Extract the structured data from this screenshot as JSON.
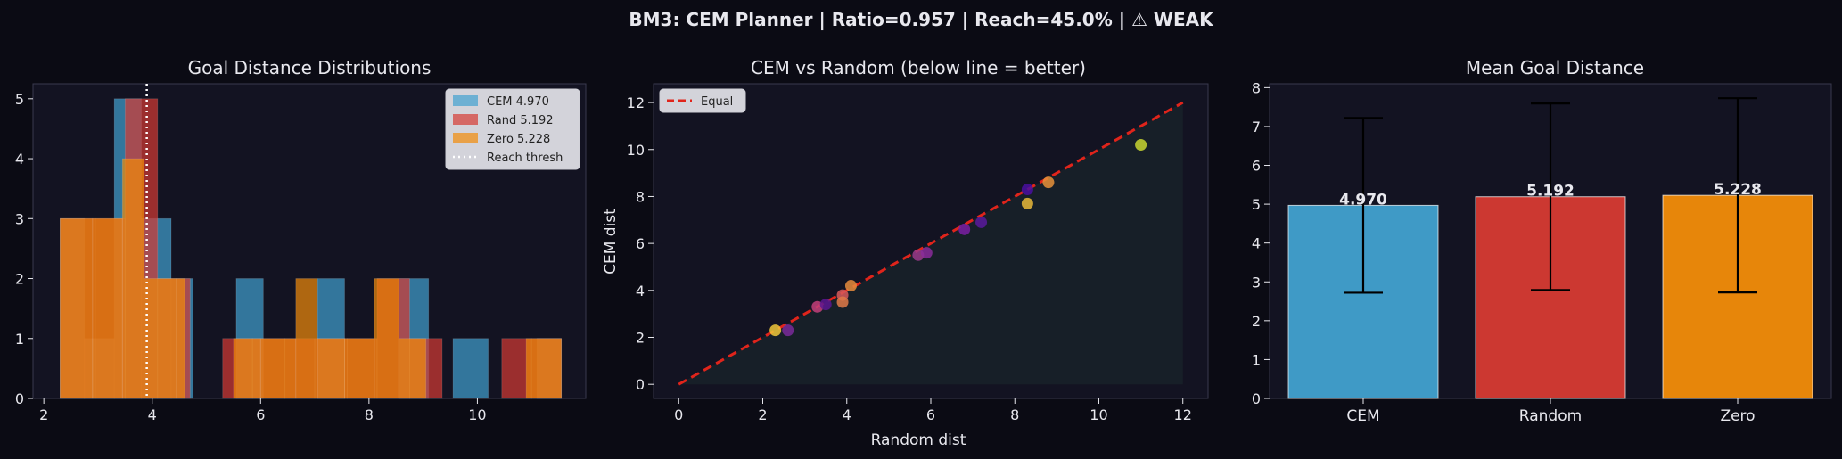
{
  "suptitle": "BM3: CEM Planner | Ratio=0.957 | Reach=45.0% | ⚠ WEAK",
  "colors": {
    "figure_bg": "#0b0b14",
    "axes_bg": "#131322",
    "spine": "#3a3a4e",
    "text": "#e8e8ee",
    "cem": "#41a1d0",
    "random": "#d63a33",
    "zero": "#f28c0a"
  },
  "chart_data": [
    {
      "type": "histogram",
      "title": "Goal Distance Distributions",
      "xlabel": "",
      "ylabel": "",
      "xlim": [
        1.8,
        12.0
      ],
      "ylim": [
        0,
        5.25
      ],
      "xticks": [
        "2",
        "4",
        "6",
        "8",
        "10"
      ],
      "yticks": [
        "0",
        "1",
        "2",
        "3",
        "4",
        "5"
      ],
      "grid": false,
      "legend_position": "top-right",
      "series": [
        {
          "name": "CEM 4.970",
          "color": "#41a1d0",
          "bars": [
            [
              2.3,
              2.75,
              3
            ],
            [
              2.75,
              3.3,
              1
            ],
            [
              3.3,
              3.8,
              5
            ],
            [
              3.8,
              4.35,
              3
            ],
            [
              4.35,
              4.75,
              2
            ],
            [
              5.55,
              6.05,
              2
            ],
            [
              7.05,
              7.55,
              2
            ],
            [
              8.55,
              9.1,
              2
            ],
            [
              9.55,
              10.2,
              1
            ],
            [
              11.1,
              11.55,
              1
            ]
          ]
        },
        {
          "name": "Rand 5.192",
          "color": "#d63a33",
          "bars": [
            [
              2.3,
              2.95,
              3
            ],
            [
              2.95,
              3.5,
              3
            ],
            [
              3.5,
              4.1,
              5
            ],
            [
              4.1,
              4.7,
              2
            ],
            [
              5.3,
              5.85,
              1
            ],
            [
              5.85,
              6.45,
              1
            ],
            [
              6.45,
              7.0,
              1
            ],
            [
              7.0,
              7.6,
              1
            ],
            [
              7.6,
              8.15,
              1
            ],
            [
              8.15,
              8.75,
              2
            ],
            [
              8.75,
              9.35,
              1
            ],
            [
              10.45,
              11.0,
              1
            ],
            [
              11.0,
              11.55,
              1
            ]
          ]
        },
        {
          "name": "Zero 5.228",
          "color": "#f28c0a",
          "bars": [
            [
              2.3,
              2.9,
              3
            ],
            [
              2.9,
              3.45,
              3
            ],
            [
              3.45,
              3.85,
              4
            ],
            [
              3.85,
              4.45,
              2
            ],
            [
              4.45,
              4.6,
              2
            ],
            [
              5.5,
              6.0,
              1
            ],
            [
              6.0,
              6.65,
              1
            ],
            [
              6.65,
              7.05,
              2
            ],
            [
              7.05,
              7.55,
              1
            ],
            [
              7.55,
              8.1,
              1
            ],
            [
              8.1,
              8.55,
              2
            ],
            [
              8.55,
              9.05,
              1
            ],
            [
              10.9,
              11.55,
              1
            ]
          ]
        }
      ],
      "reference_line": {
        "name": "Reach thresh",
        "x": 3.9,
        "style": "dotted",
        "color": "#ffffff"
      }
    },
    {
      "type": "scatter",
      "title": "CEM vs Random (below line = better)",
      "xlabel": "Random dist",
      "ylabel": "CEM dist",
      "xlim": [
        -0.6,
        12.6
      ],
      "ylim": [
        -0.6,
        12.8
      ],
      "xticks": [
        "0",
        "2",
        "4",
        "6",
        "8",
        "10",
        "12"
      ],
      "yticks": [
        "0",
        "2",
        "4",
        "6",
        "8",
        "10",
        "12"
      ],
      "grid": false,
      "legend_position": "top-left",
      "reference_line": {
        "name": "Equal",
        "x": [
          0,
          12
        ],
        "y": [
          0,
          12
        ],
        "style": "dashed",
        "color": "#e0241b"
      },
      "points": [
        {
          "x": 2.3,
          "y": 2.3,
          "color": "#f1c83a"
        },
        {
          "x": 2.6,
          "y": 2.3,
          "color": "#7a2a9a"
        },
        {
          "x": 3.3,
          "y": 3.3,
          "color": "#c4407a"
        },
        {
          "x": 3.5,
          "y": 3.4,
          "color": "#5a1890"
        },
        {
          "x": 3.9,
          "y": 3.8,
          "color": "#d85a5a"
        },
        {
          "x": 3.9,
          "y": 3.5,
          "color": "#e07a48"
        },
        {
          "x": 4.1,
          "y": 4.2,
          "color": "#e88c3c"
        },
        {
          "x": 5.7,
          "y": 5.5,
          "color": "#9a3a8a"
        },
        {
          "x": 5.9,
          "y": 5.6,
          "color": "#8a2c9a"
        },
        {
          "x": 6.8,
          "y": 6.6,
          "color": "#7a1ea2"
        },
        {
          "x": 7.2,
          "y": 6.9,
          "color": "#5a1a9c"
        },
        {
          "x": 8.3,
          "y": 8.3,
          "color": "#4a0fa0"
        },
        {
          "x": 8.3,
          "y": 7.7,
          "color": "#e8b838"
        },
        {
          "x": 8.8,
          "y": 8.6,
          "color": "#e8923a"
        },
        {
          "x": 11.0,
          "y": 10.2,
          "color": "#c8d630"
        }
      ]
    },
    {
      "type": "bar",
      "title": "Mean Goal Distance",
      "xlabel": "",
      "ylabel": "",
      "categories": [
        "CEM",
        "Random",
        "Zero"
      ],
      "values": [
        4.97,
        5.192,
        5.228
      ],
      "value_labels": [
        "4.970",
        "5.192",
        "5.228"
      ],
      "error": [
        2.25,
        2.4,
        2.5
      ],
      "colors": [
        "#41a1d0",
        "#d63a33",
        "#f28c0a"
      ],
      "ylim": [
        0,
        8.1
      ],
      "yticks": [
        "0",
        "1",
        "2",
        "3",
        "4",
        "5",
        "6",
        "7",
        "8"
      ],
      "grid": false
    }
  ]
}
